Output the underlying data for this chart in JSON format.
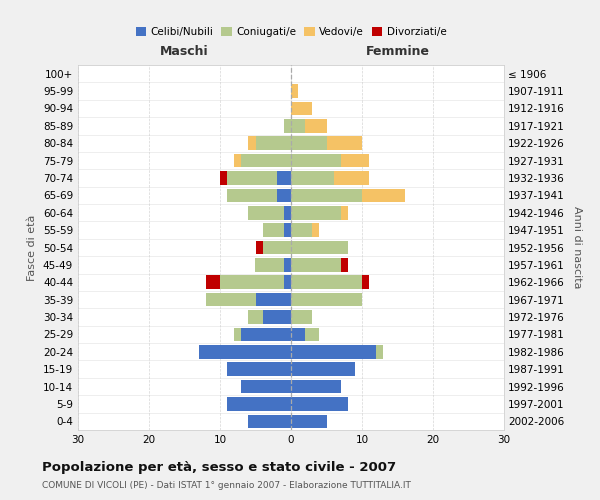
{
  "age_groups": [
    "0-4",
    "5-9",
    "10-14",
    "15-19",
    "20-24",
    "25-29",
    "30-34",
    "35-39",
    "40-44",
    "45-49",
    "50-54",
    "55-59",
    "60-64",
    "65-69",
    "70-74",
    "75-79",
    "80-84",
    "85-89",
    "90-94",
    "95-99",
    "100+"
  ],
  "birth_years": [
    "2002-2006",
    "1997-2001",
    "1992-1996",
    "1987-1991",
    "1982-1986",
    "1977-1981",
    "1972-1976",
    "1967-1971",
    "1962-1966",
    "1957-1961",
    "1952-1956",
    "1947-1951",
    "1942-1946",
    "1937-1941",
    "1932-1936",
    "1927-1931",
    "1922-1926",
    "1917-1921",
    "1912-1916",
    "1907-1911",
    "≤ 1906"
  ],
  "male_celibi": [
    6,
    9,
    7,
    9,
    13,
    7,
    4,
    5,
    1,
    1,
    0,
    1,
    1,
    2,
    2,
    0,
    0,
    0,
    0,
    0,
    0
  ],
  "male_coniugati": [
    0,
    0,
    0,
    0,
    0,
    1,
    2,
    7,
    9,
    4,
    4,
    3,
    5,
    7,
    7,
    7,
    5,
    1,
    0,
    0,
    0
  ],
  "male_vedovi": [
    0,
    0,
    0,
    0,
    0,
    0,
    0,
    0,
    0,
    0,
    0,
    0,
    0,
    0,
    0,
    1,
    1,
    0,
    0,
    0,
    0
  ],
  "male_divorziati": [
    0,
    0,
    0,
    0,
    0,
    0,
    0,
    0,
    2,
    0,
    1,
    0,
    0,
    0,
    1,
    0,
    0,
    0,
    0,
    0,
    0
  ],
  "female_nubili": [
    5,
    8,
    7,
    9,
    12,
    2,
    0,
    0,
    0,
    0,
    0,
    0,
    0,
    0,
    0,
    0,
    0,
    0,
    0,
    0,
    0
  ],
  "female_coniugate": [
    0,
    0,
    0,
    0,
    1,
    2,
    3,
    10,
    10,
    7,
    8,
    3,
    7,
    10,
    6,
    7,
    5,
    2,
    0,
    0,
    0
  ],
  "female_vedove": [
    0,
    0,
    0,
    0,
    0,
    0,
    0,
    0,
    0,
    0,
    0,
    1,
    1,
    6,
    5,
    4,
    5,
    3,
    3,
    1,
    0
  ],
  "female_divorziate": [
    0,
    0,
    0,
    0,
    0,
    0,
    0,
    0,
    1,
    1,
    0,
    0,
    0,
    0,
    0,
    0,
    0,
    0,
    0,
    0,
    0
  ],
  "color_celibi": "#4472c4",
  "color_coniugati": "#b5c98e",
  "color_vedovi": "#f5c265",
  "color_divorziati": "#c00000",
  "title": "Popolazione per età, sesso e stato civile - 2007",
  "subtitle": "COMUNE DI VICOLI (PE) - Dati ISTAT 1° gennaio 2007 - Elaborazione TUTTITALIA.IT",
  "label_maschi": "Maschi",
  "label_femmine": "Femmine",
  "ylabel_left": "Fasce di età",
  "ylabel_right": "Anni di nascita",
  "xlim": 30,
  "bg_color": "#f0f0f0",
  "plot_bg": "#ffffff",
  "grid_color": "#cccccc",
  "legend_labels": [
    "Celibi/Nubili",
    "Coniugati/e",
    "Vedovi/e",
    "Divorziati/e"
  ]
}
